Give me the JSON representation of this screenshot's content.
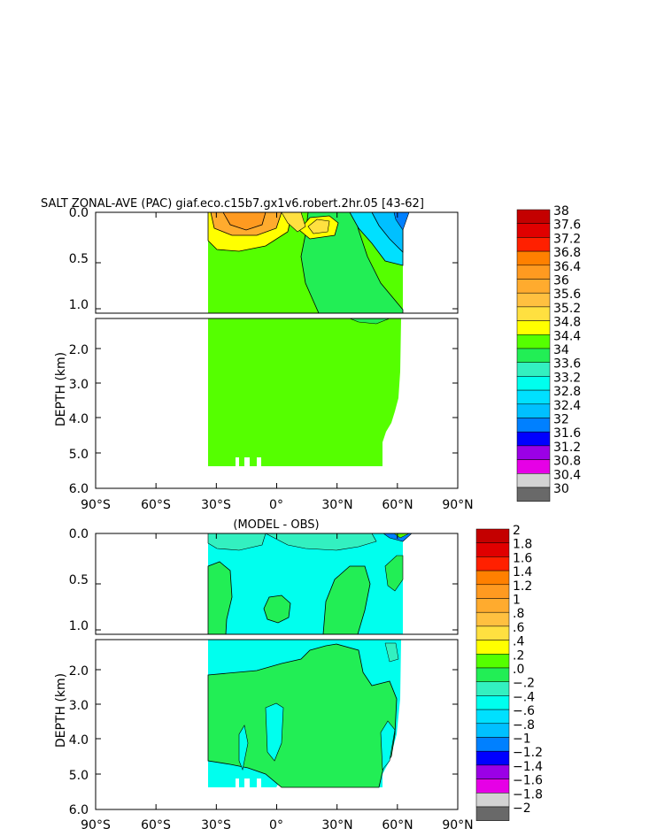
{
  "chart_data": [
    {
      "type": "heatmap",
      "title": "SALT ZONAL-AVE (PAC) giaf.eco.c15b7.gx1v6.robert.2hr.05 [43-62]",
      "ylabel": "DEPTH (km)",
      "xlim": [
        -90,
        90
      ],
      "ylim": [
        0,
        6
      ],
      "x_ticks": [
        "90°S",
        "60°S",
        "30°S",
        "0°",
        "30°N",
        "60°N",
        "90°N"
      ],
      "y_ticks": [
        "0.0",
        "0.5",
        "1.0",
        "2.0",
        "3.0",
        "4.0",
        "5.0",
        "6.0"
      ],
      "colorbar": {
        "labels": [
          "38",
          "37.6",
          "37.2",
          "36.8",
          "36.4",
          "36",
          "35.6",
          "35.2",
          "34.8",
          "34.4",
          "34",
          "33.6",
          "33.2",
          "32.8",
          "32.4",
          "32",
          "31.6",
          "31.2",
          "30.8",
          "30.4",
          "30"
        ],
        "colors": [
          "#c40000",
          "#e00000",
          "#ff2000",
          "#ff8000",
          "#ff9a20",
          "#ffab2e",
          "#ffc040",
          "#ffe040",
          "#ffff00",
          "#55ff00",
          "#22ee55",
          "#33f0c0",
          "#00ffee",
          "#00e0ff",
          "#00c0ff",
          "#0080ff",
          "#0000ff",
          "#9b00e6",
          "#e600e6",
          "#d3d3d3",
          "#696969"
        ]
      }
    },
    {
      "type": "heatmap",
      "title": "(MODEL - OBS)",
      "ylabel": "DEPTH (km)",
      "xlim": [
        -90,
        90
      ],
      "ylim": [
        0,
        6
      ],
      "x_ticks": [
        "90°S",
        "60°S",
        "30°S",
        "0°",
        "30°N",
        "60°N",
        "90°N"
      ],
      "y_ticks": [
        "0.0",
        "0.5",
        "1.0",
        "2.0",
        "3.0",
        "4.0",
        "5.0",
        "6.0"
      ],
      "colorbar": {
        "labels": [
          "2",
          "1.8",
          "1.6",
          "1.4",
          "1.2",
          "1",
          ".8",
          ".6",
          ".4",
          ".2",
          ".0",
          "−.2",
          "−.4",
          "−.6",
          "−.8",
          "−1",
          "−1.2",
          "−1.4",
          "−1.6",
          "−1.8",
          "−2"
        ],
        "colors": [
          "#c40000",
          "#e00000",
          "#ff2000",
          "#ff8000",
          "#ff9a20",
          "#ffab2e",
          "#ffc040",
          "#ffe040",
          "#ffff00",
          "#55ff00",
          "#22ee55",
          "#33f0c0",
          "#00ffee",
          "#00e0ff",
          "#00c0ff",
          "#0080ff",
          "#0000ff",
          "#9b00e6",
          "#e600e6",
          "#d3d3d3",
          "#696969"
        ]
      }
    }
  ]
}
